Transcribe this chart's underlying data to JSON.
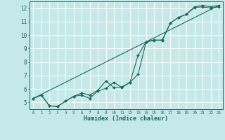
{
  "xlabel": "Humidex (Indice chaleur)",
  "bg_color": "#c5e8e8",
  "grid_color": "#ffffff",
  "line_color": "#1a6b5a",
  "xlim": [
    -0.5,
    23.5
  ],
  "ylim": [
    4.5,
    12.5
  ],
  "xticks": [
    0,
    1,
    2,
    3,
    4,
    5,
    6,
    7,
    8,
    9,
    10,
    11,
    12,
    13,
    14,
    15,
    16,
    17,
    18,
    19,
    20,
    21,
    22,
    23
  ],
  "yticks": [
    5,
    6,
    7,
    8,
    9,
    10,
    11,
    12
  ],
  "line1_x": [
    0,
    1,
    2,
    3,
    4,
    5,
    6,
    7,
    8,
    9,
    10,
    11,
    12,
    13,
    14,
    15,
    16,
    17,
    18,
    19,
    20,
    21,
    22,
    23
  ],
  "line1_y": [
    5.3,
    5.55,
    4.75,
    4.7,
    5.1,
    5.45,
    5.55,
    5.3,
    5.85,
    6.05,
    6.5,
    6.1,
    6.5,
    7.1,
    9.5,
    9.6,
    9.65,
    10.9,
    11.3,
    11.55,
    12.05,
    12.1,
    12.0,
    12.1
  ],
  "line2_x": [
    0,
    1,
    2,
    3,
    4,
    5,
    6,
    7,
    8,
    9,
    10,
    11,
    12,
    13,
    14,
    15,
    16,
    17,
    18,
    19,
    20,
    21,
    22,
    23
  ],
  "line2_y": [
    5.3,
    5.55,
    4.75,
    4.7,
    5.1,
    5.45,
    5.7,
    5.55,
    5.9,
    6.6,
    6.1,
    6.15,
    6.5,
    8.5,
    9.5,
    9.65,
    9.6,
    10.9,
    11.3,
    11.55,
    12.1,
    12.2,
    12.1,
    12.2
  ],
  "line3_x": [
    0,
    23
  ],
  "line3_y": [
    5.3,
    12.2
  ]
}
